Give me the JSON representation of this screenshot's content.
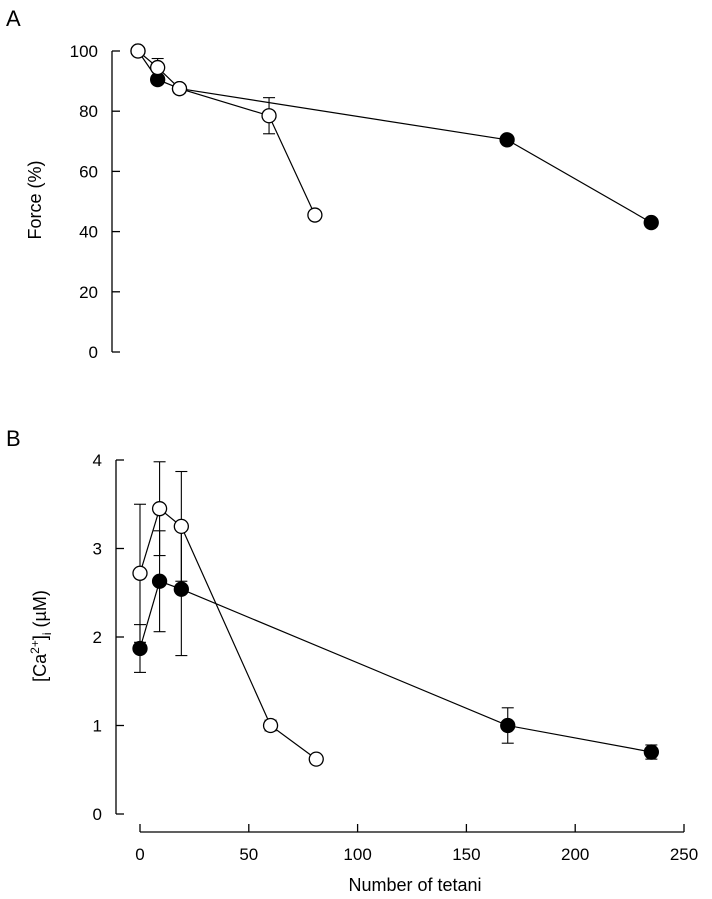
{
  "chart_data": [
    {
      "type": "line",
      "panel_label": "A",
      "xlabel": "",
      "ylabel": "Force (%)",
      "ylim": [
        0,
        100
      ],
      "yticks": [
        0,
        20,
        40,
        60,
        80,
        100
      ],
      "xlim": [
        0,
        250
      ],
      "series": [
        {
          "marker": "filled-circle",
          "x": [
            0,
            9,
            19,
            169,
            235
          ],
          "y": [
            100,
            90.5,
            87.5,
            70.5,
            43
          ],
          "err": [
            0,
            0,
            0,
            0,
            0
          ]
        },
        {
          "marker": "open-circle",
          "x": [
            0,
            9,
            19,
            60,
            81
          ],
          "y": [
            100,
            94.5,
            87.5,
            78.5,
            45.5
          ],
          "err": [
            0,
            3,
            1.5,
            6,
            0
          ]
        }
      ]
    },
    {
      "type": "line",
      "panel_label": "B",
      "xlabel": "Number of tetani",
      "ylabel": "[Ca2+]i (µM)",
      "ylabel_parts": {
        "pre": "[Ca",
        "sup": "2+",
        "mid": "]",
        "sub": "i",
        "post": " (µM)"
      },
      "ylim": [
        0,
        4
      ],
      "yticks": [
        0,
        1,
        2,
        3,
        4
      ],
      "xlim": [
        0,
        250
      ],
      "xticks": [
        0,
        50,
        100,
        150,
        200,
        250
      ],
      "series": [
        {
          "marker": "filled-circle",
          "x": [
            0,
            9,
            19,
            169,
            235
          ],
          "y": [
            1.87,
            2.63,
            2.54,
            1.0,
            0.7
          ],
          "err": [
            0.27,
            0.57,
            0.75,
            0.2,
            0.08
          ]
        },
        {
          "marker": "open-circle",
          "x": [
            0,
            9,
            19,
            60,
            81
          ],
          "y": [
            2.72,
            3.45,
            3.25,
            1.0,
            0.62
          ],
          "err": [
            0.78,
            0.53,
            0.62,
            0.06,
            0
          ]
        }
      ]
    }
  ]
}
